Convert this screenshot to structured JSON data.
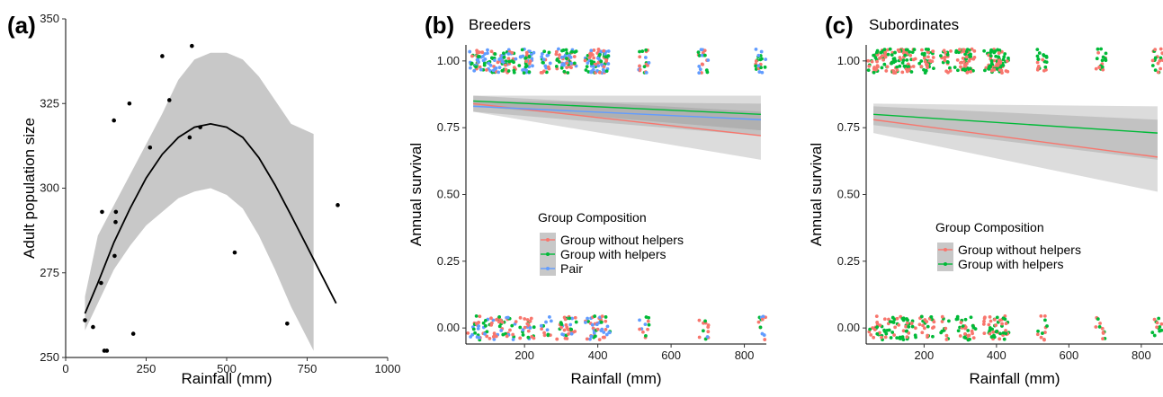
{
  "colors": {
    "ci_fill": "#c8c8c8",
    "group_without_helpers": "#f8766d",
    "group_with_helpers": "#00ba38",
    "pair": "#619cff",
    "points_a": "#000000",
    "fit_a": "#000000"
  },
  "chart_data": [
    {
      "panel": "(a)",
      "type": "scatter",
      "title": "",
      "xlabel": "Rainfall (mm)",
      "ylabel": "Adult population size",
      "xlim": [
        0,
        1000
      ],
      "ylim": [
        250,
        350
      ],
      "x_ticks": [
        "0",
        "250",
        "500",
        "750",
        "1000"
      ],
      "y_ticks": [
        "250",
        "275",
        "300",
        "325",
        "350"
      ],
      "points": [
        {
          "x": 60,
          "y": 261
        },
        {
          "x": 85,
          "y": 259
        },
        {
          "x": 110,
          "y": 272
        },
        {
          "x": 113,
          "y": 293
        },
        {
          "x": 120,
          "y": 252
        },
        {
          "x": 128,
          "y": 252
        },
        {
          "x": 150,
          "y": 320
        },
        {
          "x": 152,
          "y": 280
        },
        {
          "x": 155,
          "y": 290
        },
        {
          "x": 156,
          "y": 293
        },
        {
          "x": 198,
          "y": 325
        },
        {
          "x": 210,
          "y": 257
        },
        {
          "x": 262,
          "y": 312
        },
        {
          "x": 300,
          "y": 339
        },
        {
          "x": 322,
          "y": 326
        },
        {
          "x": 385,
          "y": 315
        },
        {
          "x": 392,
          "y": 342
        },
        {
          "x": 418,
          "y": 318
        },
        {
          "x": 525,
          "y": 281
        },
        {
          "x": 688,
          "y": 260
        },
        {
          "x": 845,
          "y": 295
        }
      ],
      "fit": {
        "x": [
          60,
          100,
          150,
          200,
          250,
          300,
          350,
          400,
          450,
          500,
          550,
          600,
          650,
          700,
          770,
          840
        ],
        "y": [
          263,
          272,
          284,
          294,
          303,
          310,
          315,
          318,
          319,
          318,
          315,
          309,
          301,
          292,
          279,
          266
        ],
        "lower": [
          258,
          266,
          276,
          283,
          289,
          293,
          297,
          299,
          300,
          298,
          294,
          286,
          276,
          265,
          252,
          null
        ],
        "upper": [
          268,
          286,
          295,
          304,
          313,
          322,
          332,
          338,
          340,
          340,
          338,
          333,
          326,
          319,
          316,
          null
        ]
      },
      "grid": false
    },
    {
      "panel": "(b)",
      "type": "scatter",
      "subtitle": "Breeders",
      "xlabel": "Rainfall (mm)",
      "ylabel": "Annual survival",
      "xlim": [
        40,
        860
      ],
      "ylim": [
        -0.06,
        1.06
      ],
      "x_ticks": [
        "200",
        "400",
        "600",
        "800"
      ],
      "y_ticks": [
        "0.00",
        "0.25",
        "0.50",
        "0.75",
        "1.00"
      ],
      "rainfall_groups": [
        60,
        82,
        105,
        130,
        145,
        162,
        200,
        213,
        260,
        300,
        315,
        328,
        380,
        392,
        412,
        420,
        525,
        688,
        845
      ],
      "legend": {
        "title": "Group Composition",
        "position": "center-left",
        "items": [
          "Group without helpers",
          "Group with helpers",
          "Pair"
        ]
      },
      "series": [
        {
          "name": "Group without helpers",
          "x": [
            60,
            845
          ],
          "y": [
            0.84,
            0.72
          ],
          "ci_lower": [
            0.81,
            0.63
          ],
          "ci_upper": [
            0.87,
            0.81
          ]
        },
        {
          "name": "Group with helpers",
          "x": [
            60,
            845
          ],
          "y": [
            0.85,
            0.8
          ],
          "ci_lower": [
            0.83,
            0.74
          ],
          "ci_upper": [
            0.87,
            0.87
          ]
        },
        {
          "name": "Pair",
          "x": [
            60,
            845
          ],
          "y": [
            0.83,
            0.78
          ],
          "ci_lower": [
            0.81,
            0.72
          ],
          "ci_upper": [
            0.85,
            0.84
          ]
        }
      ],
      "grid": false
    },
    {
      "panel": "(c)",
      "type": "scatter",
      "subtitle": "Subordinates",
      "xlabel": "Rainfall (mm)",
      "ylabel": "Annual survival",
      "xlim": [
        40,
        860
      ],
      "ylim": [
        -0.06,
        1.06
      ],
      "x_ticks": [
        "200",
        "400",
        "600",
        "800"
      ],
      "y_ticks": [
        "0.00",
        "0.25",
        "0.50",
        "0.75",
        "1.00"
      ],
      "rainfall_groups": [
        60,
        82,
        105,
        130,
        145,
        162,
        200,
        213,
        260,
        300,
        315,
        328,
        380,
        392,
        412,
        420,
        525,
        688,
        845
      ],
      "legend": {
        "title": "Group Composition",
        "position": "center-right",
        "items": [
          "Group without helpers",
          "Group with helpers"
        ]
      },
      "series": [
        {
          "name": "Group without helpers",
          "x": [
            60,
            845
          ],
          "y": [
            0.78,
            0.64
          ],
          "ci_lower": [
            0.73,
            0.51
          ],
          "ci_upper": [
            0.83,
            0.78
          ]
        },
        {
          "name": "Group with helpers",
          "x": [
            60,
            845
          ],
          "y": [
            0.8,
            0.73
          ],
          "ci_lower": [
            0.76,
            0.63
          ],
          "ci_upper": [
            0.84,
            0.83
          ]
        }
      ],
      "grid": false
    }
  ]
}
